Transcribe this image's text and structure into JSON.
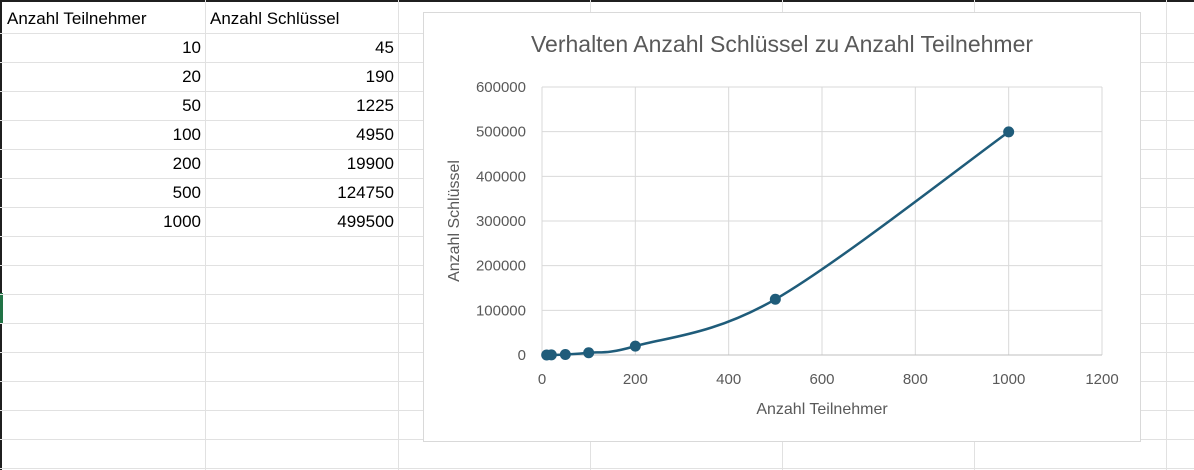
{
  "spreadsheet": {
    "headers": [
      "Anzahl Teilnehmer",
      "Anzahl Schlüssel"
    ],
    "rows": [
      [
        "10",
        "45"
      ],
      [
        "20",
        "190"
      ],
      [
        "50",
        "1225"
      ],
      [
        "100",
        "4950"
      ],
      [
        "200",
        "19900"
      ],
      [
        "500",
        "124750"
      ],
      [
        "1000",
        "499500"
      ]
    ]
  },
  "chart_data": {
    "type": "scatter",
    "title": "Verhalten Anzahl Schlüssel zu Anzahl Teilnehmer",
    "xlabel": "Anzahl Teilnehmer",
    "ylabel": "Anzahl Schlüssel",
    "xlim": [
      0,
      1200
    ],
    "ylim": [
      0,
      600000
    ],
    "x_ticks": [
      "0",
      "200",
      "400",
      "600",
      "800",
      "1000",
      "1200"
    ],
    "y_ticks": [
      "0",
      "100000",
      "200000",
      "300000",
      "400000",
      "500000",
      "600000"
    ],
    "grid": true,
    "smooth_line": true,
    "series": [
      {
        "color": "#1f5c7a",
        "points": [
          {
            "x": 10,
            "y": 45
          },
          {
            "x": 20,
            "y": 190
          },
          {
            "x": 50,
            "y": 1225
          },
          {
            "x": 100,
            "y": 4950
          },
          {
            "x": 200,
            "y": 19900
          },
          {
            "x": 500,
            "y": 124750
          },
          {
            "x": 1000,
            "y": 499500
          }
        ]
      }
    ]
  }
}
